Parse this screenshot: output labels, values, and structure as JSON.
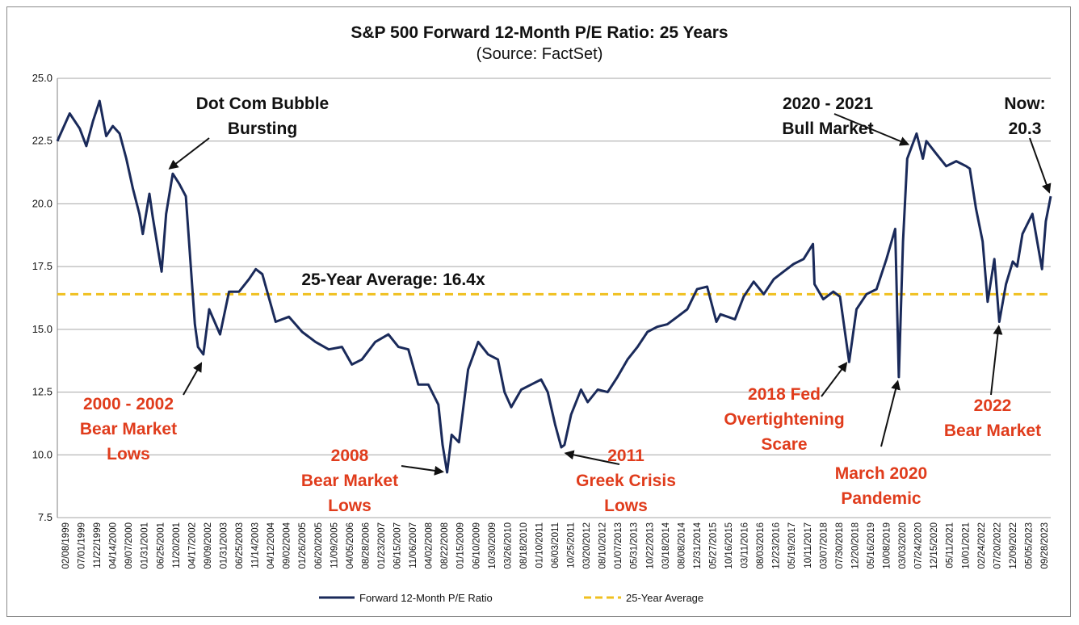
{
  "chart_data": {
    "type": "line",
    "title": "S&P 500 Forward 12-Month P/E Ratio: 25 Years",
    "subtitle": "(Source: FactSet)",
    "ylim": [
      7.5,
      25.0
    ],
    "yticks": [
      "25.0",
      "22.5",
      "20.0",
      "17.5",
      "15.0",
      "12.5",
      "10.0",
      "7.5"
    ],
    "grid": true,
    "legend_position": "bottom",
    "xtick_labels": [
      "02/08/1999",
      "07/01/1999",
      "11/22/1999",
      "04/14/2000",
      "09/07/2000",
      "01/31/2001",
      "06/25/2001",
      "11/20/2001",
      "04/17/2002",
      "09/09/2002",
      "01/31/2003",
      "06/25/2003",
      "11/14/2003",
      "04/12/2004",
      "09/02/2004",
      "01/26/2005",
      "06/20/2005",
      "11/09/2005",
      "04/05/2006",
      "08/28/2006",
      "01/23/2007",
      "06/15/2007",
      "11/06/2007",
      "04/02/2008",
      "08/22/2008",
      "01/15/2009",
      "06/10/2009",
      "10/30/2009",
      "03/26/2010",
      "08/18/2010",
      "01/10/2011",
      "06/03/2011",
      "10/25/2011",
      "03/20/2012",
      "08/10/2012",
      "01/07/2013",
      "05/31/2013",
      "10/22/2013",
      "03/18/2014",
      "08/08/2014",
      "12/31/2014",
      "05/27/2015",
      "10/16/2015",
      "03/11/2016",
      "08/03/2016",
      "12/23/2016",
      "05/19/2017",
      "10/11/2017",
      "03/07/2018",
      "07/30/2018",
      "12/20/2018",
      "05/16/2019",
      "10/08/2019",
      "03/03/2020",
      "07/24/2020",
      "12/15/2020",
      "05/11/2021",
      "10/01/2021",
      "02/24/2022",
      "07/20/2022",
      "12/09/2022",
      "05/05/2023",
      "09/28/2023"
    ],
    "series": [
      {
        "name": "Forward 12-Month P/E Ratio",
        "color": "#1a2a5a",
        "x": [
          "1999-02-08",
          "1999-06-01",
          "1999-09-01",
          "1999-11-01",
          "2000-01-01",
          "2000-03-01",
          "2000-05-01",
          "2000-07-01",
          "2000-09-01",
          "2000-11-01",
          "2001-01-01",
          "2001-03-01",
          "2001-04-01",
          "2001-06-01",
          "2001-07-01",
          "2001-09-21",
          "2001-11-01",
          "2002-01-01",
          "2002-03-01",
          "2002-05-01",
          "2002-07-23",
          "2002-08-20",
          "2002-10-09",
          "2002-12-01",
          "2003-03-11",
          "2003-06-01",
          "2003-09-01",
          "2003-12-01",
          "2004-02-01",
          "2004-04-01",
          "2004-08-01",
          "2004-12-01",
          "2005-04-01",
          "2005-08-01",
          "2005-12-01",
          "2006-04-01",
          "2006-07-01",
          "2006-10-01",
          "2007-02-01",
          "2007-06-01",
          "2007-09-01",
          "2007-12-01",
          "2008-03-01",
          "2008-06-01",
          "2008-09-01",
          "2008-10-10",
          "2008-11-20",
          "2009-01-01",
          "2009-03-09",
          "2009-06-01",
          "2009-09-01",
          "2009-12-01",
          "2010-03-01",
          "2010-05-01",
          "2010-07-01",
          "2010-10-01",
          "2011-01-01",
          "2011-04-01",
          "2011-06-01",
          "2011-08-08",
          "2011-10-03",
          "2011-11-01",
          "2012-01-01",
          "2012-04-01",
          "2012-06-01",
          "2012-09-01",
          "2012-12-01",
          "2013-03-01",
          "2013-06-01",
          "2013-09-01",
          "2013-12-01",
          "2014-03-01",
          "2014-06-01",
          "2014-09-01",
          "2014-12-01",
          "2015-03-01",
          "2015-06-01",
          "2015-08-25",
          "2015-10-01",
          "2016-02-11",
          "2016-05-01",
          "2016-08-01",
          "2016-11-01",
          "2017-02-01",
          "2017-05-01",
          "2017-08-01",
          "2017-11-01",
          "2018-01-26",
          "2018-02-09",
          "2018-05-01",
          "2018-08-01",
          "2018-10-01",
          "2018-12-24",
          "2019-03-01",
          "2019-06-01",
          "2019-09-01",
          "2019-12-01",
          "2020-02-19",
          "2020-03-23",
          "2020-05-01",
          "2020-06-08",
          "2020-09-02",
          "2020-10-30",
          "2020-12-01",
          "2021-03-01",
          "2021-06-01",
          "2021-09-01",
          "2021-12-01",
          "2022-01-03",
          "2022-03-01",
          "2022-05-01",
          "2022-06-16",
          "2022-08-16",
          "2022-09-30",
          "2022-12-01",
          "2023-02-01",
          "2023-03-13",
          "2023-05-01",
          "2023-07-31",
          "2023-10-27",
          "2023-12-01",
          "2024-01-15"
        ],
        "y": [
          22.5,
          23.6,
          23.0,
          22.3,
          23.3,
          24.1,
          22.7,
          23.1,
          22.8,
          21.8,
          20.6,
          19.6,
          18.8,
          20.4,
          19.5,
          17.3,
          19.6,
          21.2,
          20.8,
          20.3,
          15.2,
          14.3,
          14.0,
          15.8,
          14.8,
          16.5,
          16.5,
          17.0,
          17.4,
          17.2,
          15.3,
          15.5,
          14.9,
          14.5,
          14.2,
          14.3,
          13.6,
          13.8,
          14.5,
          14.8,
          14.3,
          14.2,
          12.8,
          12.8,
          12.0,
          10.4,
          9.3,
          10.8,
          10.5,
          13.4,
          14.5,
          14.0,
          13.8,
          12.5,
          11.9,
          12.6,
          12.8,
          13.0,
          12.5,
          11.2,
          10.3,
          10.4,
          11.6,
          12.6,
          12.1,
          12.6,
          12.5,
          13.1,
          13.8,
          14.3,
          14.9,
          15.1,
          15.2,
          15.5,
          15.8,
          16.6,
          16.7,
          15.3,
          15.6,
          15.4,
          16.3,
          16.9,
          16.4,
          17.0,
          17.3,
          17.6,
          17.8,
          18.4,
          16.8,
          16.2,
          16.5,
          16.3,
          13.7,
          15.8,
          16.4,
          16.6,
          17.8,
          19.0,
          13.1,
          18.5,
          21.8,
          22.8,
          21.8,
          22.5,
          22.0,
          21.5,
          21.7,
          21.5,
          21.4,
          19.8,
          18.5,
          16.1,
          17.8,
          15.3,
          16.8,
          17.7,
          17.5,
          18.8,
          19.6,
          17.4,
          19.3,
          20.3
        ]
      },
      {
        "name": "25-Year Average",
        "color": "#f0c020",
        "value": 16.4
      }
    ],
    "annotations": [
      {
        "text_lines": [
          "Dot Com Bubble",
          "Bursting"
        ],
        "color": "#111111",
        "points_to": {
          "x": "2001-11-01",
          "y": 21.3
        }
      },
      {
        "text_lines": [
          "2000 - 2002",
          "Bear Market",
          "Lows"
        ],
        "color": "#e03c1c",
        "points_to": {
          "x": "2002-10-09",
          "y": 13.8
        }
      },
      {
        "text_lines": [
          "25-Year Average: 16.4x"
        ],
        "color": "#111111"
      },
      {
        "text_lines": [
          "2008",
          "Bear Market",
          "Lows"
        ],
        "color": "#e03c1c",
        "points_to": {
          "x": "2008-11-20",
          "y": 9.3
        }
      },
      {
        "text_lines": [
          "2011",
          "Greek Crisis",
          "Lows"
        ],
        "color": "#e03c1c",
        "points_to": {
          "x": "2011-10-03",
          "y": 10.1
        }
      },
      {
        "text_lines": [
          "2018 Fed",
          "Overtightening",
          "Scare"
        ],
        "color": "#e03c1c",
        "points_to": {
          "x": "2018-12-24",
          "y": 13.8
        }
      },
      {
        "text_lines": [
          "March 2020",
          "Pandemic"
        ],
        "color": "#e03c1c",
        "points_to": {
          "x": "2020-03-23",
          "y": 13.1
        }
      },
      {
        "text_lines": [
          "2020 - 2021",
          "Bull Market"
        ],
        "color": "#111111",
        "points_to": {
          "x": "2020-07-24",
          "y": 22.3
        }
      },
      {
        "text_lines": [
          "2022",
          "Bear Market"
        ],
        "color": "#e03c1c",
        "points_to": {
          "x": "2022-09-30",
          "y": 15.3
        }
      },
      {
        "text_lines": [
          "Now:",
          "20.3"
        ],
        "color": "#111111",
        "points_to": {
          "x": "2024-01-15",
          "y": 20.3
        }
      }
    ]
  }
}
